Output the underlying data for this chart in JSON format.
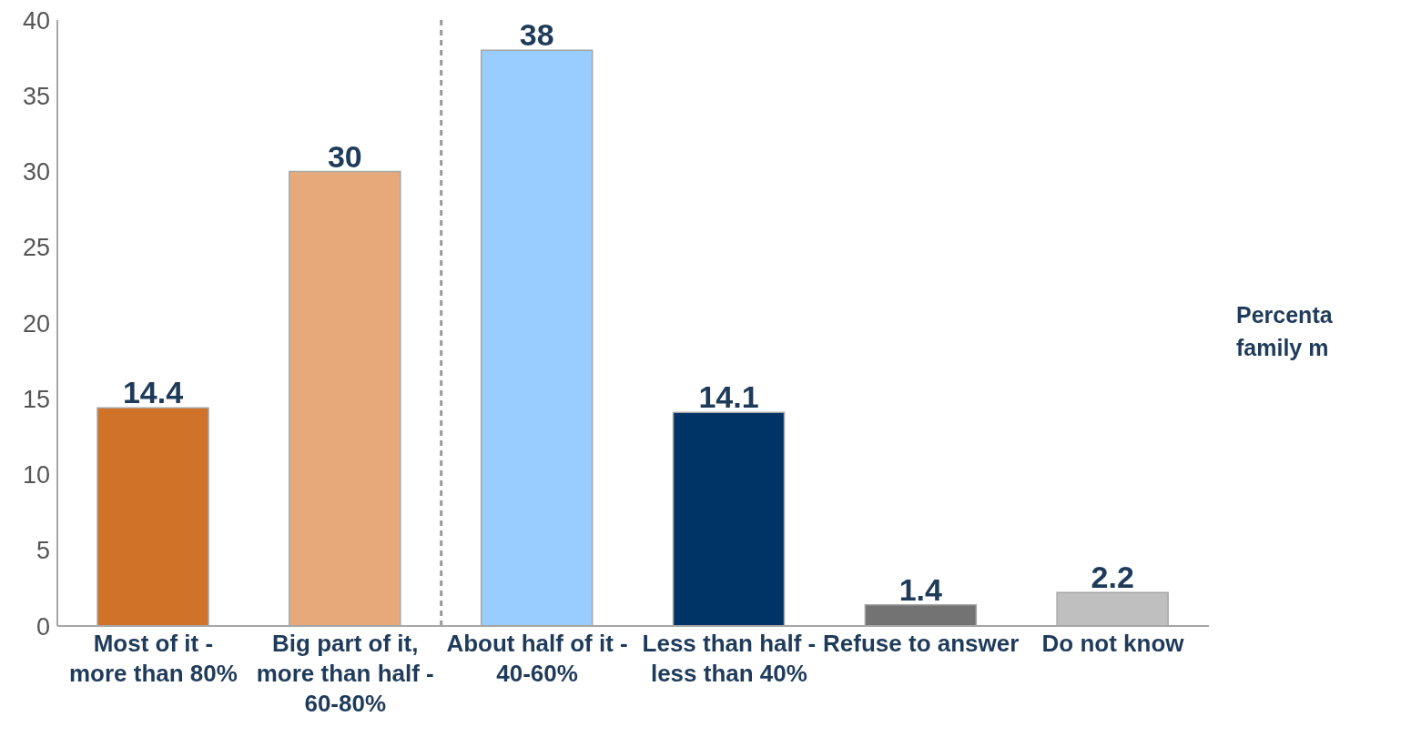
{
  "chart_data": {
    "type": "bar",
    "categories": [
      "Most of it - more than 80%",
      "Big part of it, more than half - 60-80%",
      "About half of it - 40-60%",
      "Less than half - less than 40%",
      "Refuse to answer",
      "Do not know"
    ],
    "values": [
      14.4,
      30,
      38,
      14.1,
      1.4,
      2.2
    ],
    "colors": [
      "#d07228",
      "#e8a97a",
      "#99ccff",
      "#003366",
      "#737373",
      "#bfbfbf"
    ],
    "ylim": [
      0,
      40
    ],
    "yticks": [
      0,
      5,
      10,
      15,
      20,
      25,
      30,
      35,
      40
    ],
    "data_labels": true,
    "annotations": [
      "Percenta family m"
    ]
  }
}
